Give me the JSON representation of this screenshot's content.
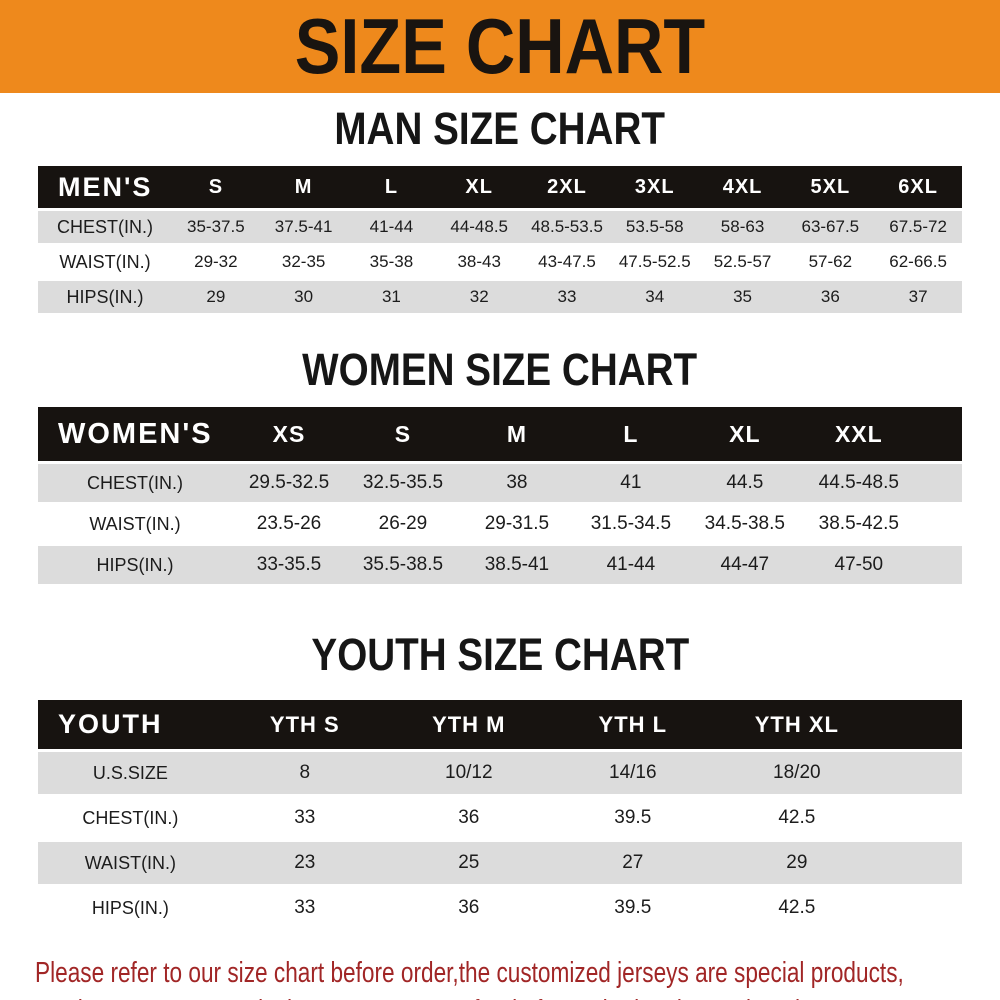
{
  "banner": {
    "title": "SIZE CHART",
    "bg_color": "#ee891c",
    "text_color": "#191410"
  },
  "sections": [
    {
      "title": "MAN SIZE CHART",
      "header": {
        "label": "MEN'S",
        "columns": [
          "S",
          "M",
          "L",
          "XL",
          "2XL",
          "3XL",
          "4XL",
          "5XL",
          "6XL"
        ]
      },
      "rows": [
        {
          "label": "CHEST(IN.)",
          "values": [
            "35-37.5",
            "37.5-41",
            "41-44",
            "44-48.5",
            "48.5-53.5",
            "53.5-58",
            "58-63",
            "63-67.5",
            "67.5-72"
          ]
        },
        {
          "label": "WAIST(IN.)",
          "values": [
            "29-32",
            "32-35",
            "35-38",
            "38-43",
            "43-47.5",
            "47.5-52.5",
            "52.5-57",
            "57-62",
            "62-66.5"
          ]
        },
        {
          "label": "HIPS(IN.)",
          "values": [
            "29",
            "30",
            "31",
            "32",
            "33",
            "34",
            "35",
            "36",
            "37"
          ]
        }
      ]
    },
    {
      "title": "WOMEN SIZE CHART",
      "header": {
        "label": "WOMEN'S",
        "columns": [
          "XS",
          "S",
          "M",
          "L",
          "XL",
          "XXL"
        ]
      },
      "rows": [
        {
          "label": "CHEST(IN.)",
          "values": [
            "29.5-32.5",
            "32.5-35.5",
            "38",
            "41",
            "44.5",
            "44.5-48.5"
          ]
        },
        {
          "label": "WAIST(IN.)",
          "values": [
            "23.5-26",
            "26-29",
            "29-31.5",
            "31.5-34.5",
            "34.5-38.5",
            "38.5-42.5"
          ]
        },
        {
          "label": "HIPS(IN.)",
          "values": [
            "33-35.5",
            "35.5-38.5",
            "38.5-41",
            "41-44",
            "44-47",
            "47-50"
          ]
        }
      ]
    },
    {
      "title": "YOUTH SIZE CHART",
      "header": {
        "label": "YOUTH",
        "columns": [
          "YTH S",
          "YTH M",
          "YTH L",
          "YTH XL"
        ]
      },
      "rows": [
        {
          "label": "U.S.SIZE",
          "values": [
            "8",
            "10/12",
            "14/16",
            "18/20"
          ]
        },
        {
          "label": "CHEST(IN.)",
          "values": [
            "33",
            "36",
            "39.5",
            "42.5"
          ]
        },
        {
          "label": "WAIST(IN.)",
          "values": [
            "23",
            "25",
            "27",
            "29"
          ]
        },
        {
          "label": "HIPS(IN.)",
          "values": [
            "33",
            "36",
            "39.5",
            "42.5"
          ]
        }
      ]
    }
  ],
  "colors": {
    "banner_orange": "#ee891c",
    "header_bar_black": "#171310",
    "stripe_gray": "#dcdcdc",
    "stripe_white": "#ffffff",
    "note_red": "#a12626"
  },
  "footer_note": {
    "line1": "Please refer to our size chart before order,the customized jerseys are special products,",
    "line2": "we don't accept cancel, change, teturn or refund after order has been placed!"
  }
}
